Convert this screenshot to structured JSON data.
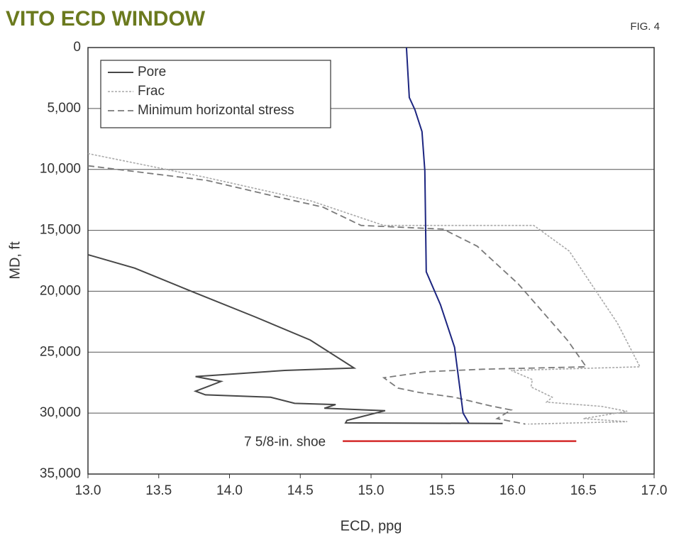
{
  "chart_data": {
    "type": "line",
    "title": "VITO ECD WINDOW",
    "figure_label": "FIG. 4",
    "x_label": "ECD, ppg",
    "y_label": "MD, ft",
    "xlim": [
      13,
      17
    ],
    "ylim": [
      0,
      35000
    ],
    "y_inverted": true,
    "grid": "horizontal",
    "legend": "upper-left",
    "xticks": [
      {
        "value": 13,
        "label": "13.0"
      },
      13.5,
      {
        "value": 14,
        "label": "14.0"
      },
      14.5,
      {
        "value": 15,
        "label": "15.0"
      },
      15.5,
      {
        "value": 16,
        "label": "16.0"
      },
      16.5,
      {
        "value": 17,
        "label": "17.0"
      }
    ],
    "yticks": [
      0,
      {
        "value": 5000,
        "label": "5,000"
      },
      {
        "value": 10000,
        "label": "10,000"
      },
      {
        "value": 15000,
        "label": "15,000"
      },
      {
        "value": 20000,
        "label": "20,000"
      },
      {
        "value": 25000,
        "label": "25,000"
      },
      {
        "value": 30000,
        "label": "30,000"
      },
      {
        "value": 35000,
        "label": "35,000"
      }
    ],
    "series": [
      {
        "name": "Pore",
        "color": "#474747",
        "style": "solid",
        "x": [
          13.0,
          13.33,
          13.73,
          14.18,
          14.57,
          14.88,
          14.39,
          13.76,
          13.94,
          13.84,
          13.76,
          13.83,
          14.29,
          14.46,
          14.75,
          14.67,
          15.1,
          14.83,
          14.82,
          15.93
        ],
        "y": [
          17000,
          18100,
          20000,
          22100,
          24000,
          26300,
          26500,
          27000,
          27400,
          27850,
          28200,
          28500,
          28700,
          29200,
          29300,
          29600,
          29800,
          30600,
          30800,
          30850
        ]
      },
      {
        "name": "Frac",
        "color": "#a8a8a8",
        "style": "dotted",
        "x": [
          13.0,
          13.83,
          14.58,
          15.09,
          16.15,
          16.4,
          16.74,
          16.9,
          15.99,
          16.14,
          16.13,
          16.28,
          16.24,
          16.63,
          16.81,
          16.5,
          16.81,
          16.11
        ],
        "y": [
          8700,
          10650,
          12600,
          14600,
          14600,
          16700,
          22600,
          26200,
          26500,
          27250,
          27850,
          28700,
          29100,
          29450,
          29850,
          30450,
          30700,
          30900
        ]
      },
      {
        "name": "Minimum horizontal stress",
        "color": "#7a7a7a",
        "style": "dashed",
        "x": [
          13.0,
          13.84,
          14.28,
          14.66,
          14.93,
          15.51,
          15.75,
          16.04,
          16.39,
          16.52,
          15.79,
          15.39,
          15.09,
          15.19,
          15.34,
          15.59,
          15.84,
          15.99,
          15.89,
          16.09
        ],
        "y": [
          9700,
          10900,
          12100,
          13100,
          14600,
          14900,
          16300,
          19400,
          24050,
          26200,
          26400,
          26600,
          27100,
          27950,
          28300,
          28700,
          29400,
          29750,
          30450,
          30900
        ]
      },
      {
        "color": "#1c2580",
        "style": "solid",
        "x": [
          15.25,
          15.27,
          15.31,
          15.36,
          15.38,
          15.39,
          15.49,
          15.59,
          15.65,
          15.69
        ],
        "y": [
          0,
          4100,
          5100,
          6900,
          10100,
          18400,
          21100,
          24600,
          30000,
          30800
        ]
      }
    ],
    "shoe": {
      "label": "7 5/8-in. shoe",
      "depth": 32300,
      "x": [
        14.8,
        16.45
      ],
      "color": "#d42a2a"
    }
  }
}
